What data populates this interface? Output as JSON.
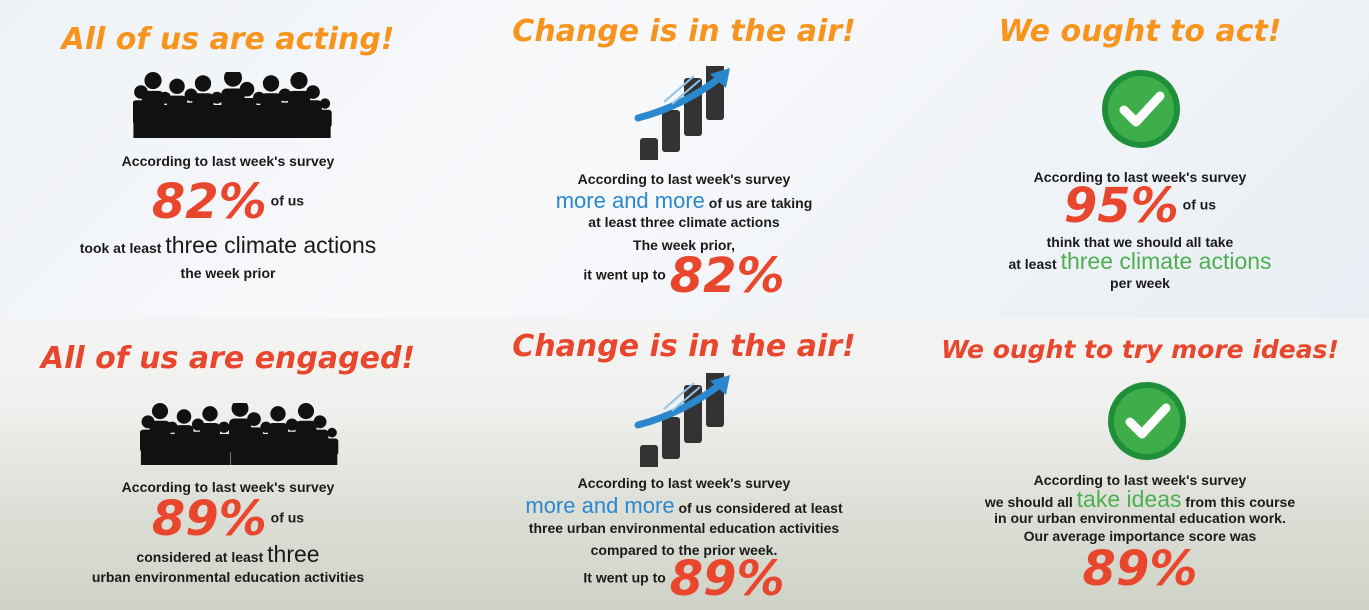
{
  "panels": [
    {
      "title": "All of us are acting!",
      "lines": [
        [
          "According to last week's survey"
        ],
        [
          "82%",
          "of us"
        ],
        [
          "took at least",
          "three climate actions"
        ],
        [
          "the week prior"
        ]
      ]
    },
    {
      "title": "Change is in the air!",
      "lines": [
        [
          "According to last week's survey"
        ],
        [
          "more and more",
          "of us are taking"
        ],
        [
          "at least three climate actions"
        ],
        [
          "The week prior,"
        ],
        [
          "it went up to",
          "82%"
        ]
      ]
    },
    {
      "title": "We ought to act!",
      "lines": [
        [
          "According to last week's survey"
        ],
        [
          "95%",
          "of us"
        ],
        [
          "think that we should all take"
        ],
        [
          "at least",
          "three climate actions"
        ],
        [
          "per week"
        ]
      ]
    },
    {
      "title": "All of us are engaged!",
      "lines": [
        [
          "According to last week's survey"
        ],
        [
          "89%",
          "of us"
        ],
        [
          "considered at least",
          "three"
        ],
        [
          "urban environmental education activities"
        ]
      ]
    },
    {
      "title": "Change is in the air!",
      "lines": [
        [
          "According to last week's survey"
        ],
        [
          "more and more",
          "of us considered at least"
        ],
        [
          "three urban environmental education activities"
        ],
        [
          "compared to the prior week."
        ],
        [
          "It went up to",
          "89%"
        ]
      ]
    },
    {
      "title": "We ought to try more ideas!",
      "lines": [
        [
          "According to last week's survey"
        ],
        [
          "we should all",
          "take ideas",
          "from this course"
        ],
        [
          "in our urban environmental education work."
        ],
        [
          "Our average importance score was"
        ],
        [
          "89%"
        ]
      ]
    }
  ]
}
